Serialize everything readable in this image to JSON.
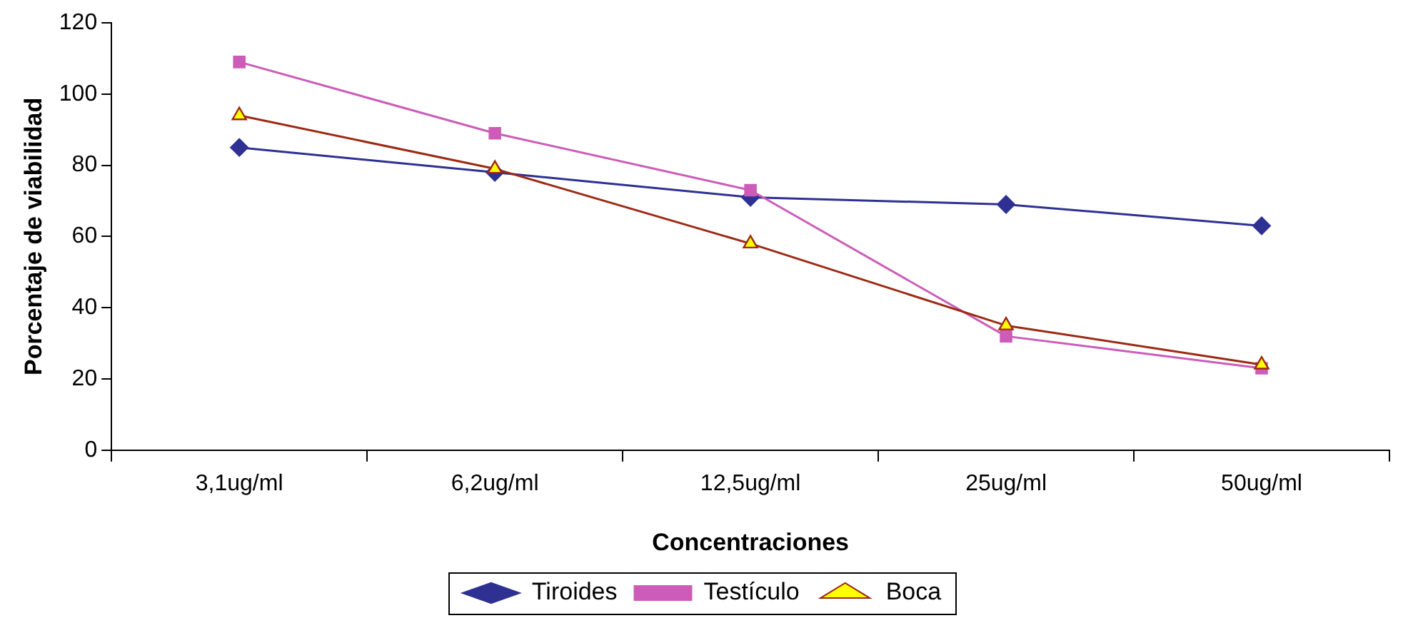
{
  "chart_data": {
    "type": "line",
    "xlabel": "Concentraciones",
    "ylabel": "Porcentaje de viabilidad",
    "categories": [
      "3,1ug/ml",
      "6,2ug/ml",
      "12,5ug/ml",
      "25ug/ml",
      "50ug/ml"
    ],
    "series": [
      {
        "name": "Tiroides",
        "color": "#2e3192",
        "marker": "diamond",
        "values": [
          85,
          78,
          71,
          69,
          63
        ]
      },
      {
        "name": "Testículo",
        "color": "#cc5cb8",
        "marker": "square",
        "values": [
          109,
          89,
          73,
          32,
          23
        ]
      },
      {
        "name": "Boca",
        "color": "#9c2a14",
        "marker": "triangle",
        "values": [
          94,
          79,
          58,
          35,
          24
        ]
      }
    ],
    "ylim": [
      0,
      120
    ],
    "yticks": [
      0,
      20,
      40,
      60,
      80,
      100,
      120
    ],
    "grid": false,
    "legend": "bottom",
    "line_style": "solid"
  }
}
